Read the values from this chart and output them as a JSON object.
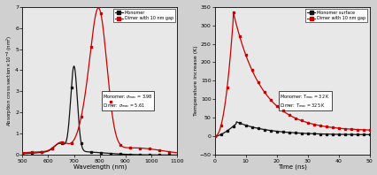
{
  "left": {
    "xlabel": "Wavelength (nm)",
    "ylabel_line1": "Absorption cross section",
    "ylabel_line2": "×10⁻⁴ (nm²)",
    "xlim": [
      500,
      1100
    ],
    "ylim": [
      0,
      7
    ],
    "yticks": [
      0,
      1,
      2,
      3,
      4,
      5,
      6,
      7
    ],
    "xticks": [
      500,
      600,
      700,
      800,
      900,
      1000,
      1100
    ],
    "legend": [
      "Monomer",
      "Dimer with 10 nm gap"
    ],
    "ann_line1": "Monomer: σ",
    "ann_line2": "Dimer: σ",
    "monomer_color": "#111111",
    "dimer_color": "#cc0000",
    "bg_color": "#e8e8e8"
  },
  "right": {
    "xlabel": "Time (ns)",
    "ylabel": "Temperature increase (K)",
    "xlim": [
      0,
      50
    ],
    "ylim": [
      -50,
      350
    ],
    "yticks": [
      -50,
      0,
      50,
      100,
      150,
      200,
      250,
      300,
      350
    ],
    "xticks": [
      0,
      10,
      20,
      30,
      40,
      50
    ],
    "legend": [
      "Monomer surface",
      "Dimer with 10 nm gap"
    ],
    "monomer_color": "#111111",
    "dimer_color": "#cc0000",
    "bg_color": "#e8e8e8"
  }
}
